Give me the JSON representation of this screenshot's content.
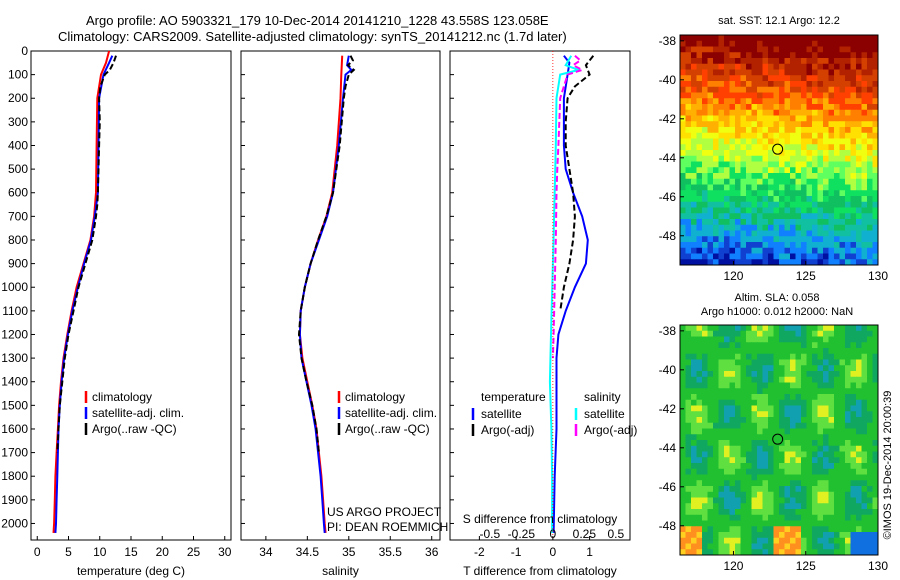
{
  "title_line1": "Argo profile: AO 5903321_179 10-Dec-2014 20141210_1228 43.558S 123.058E",
  "title_line2": "Climatology: CARS2009. Satellite-adjusted climatology: synTS_20141212.nc (1.7d later)",
  "side_caption": "©IMOS 19-Dec-2014 20:00:39",
  "colors": {
    "climatology": "#ff0000",
    "satellite": "#0000ff",
    "argo": "#000000",
    "sat_salinity": "#00ffff",
    "argo_salinity": "#ff00ff"
  },
  "chart_data": [
    {
      "id": "temperature",
      "type": "line",
      "xlabel": "temperature (deg C)",
      "ylabel": "",
      "xlim": [
        -1,
        31
      ],
      "ylim": [
        2070,
        0
      ],
      "xticks": [
        0,
        5,
        10,
        15,
        20,
        25,
        30
      ],
      "yticks": [
        0,
        100,
        200,
        300,
        400,
        500,
        600,
        700,
        800,
        900,
        1000,
        1100,
        1200,
        1300,
        1400,
        1500,
        1600,
        1700,
        1800,
        1900,
        2000
      ],
      "legend": [
        "climatology",
        "satellite-adj. clim.",
        "Argo(..raw -QC)"
      ],
      "legend_position": "lower-center",
      "series": [
        {
          "name": "climatology",
          "color": "#ff0000",
          "dash": "",
          "points": [
            [
              11.5,
              0
            ],
            [
              11.0,
              50
            ],
            [
              10.2,
              100
            ],
            [
              9.6,
              200
            ],
            [
              9.5,
              400
            ],
            [
              9.4,
              600
            ],
            [
              9.1,
              700
            ],
            [
              8.5,
              800
            ],
            [
              7.4,
              900
            ],
            [
              6.3,
              1000
            ],
            [
              5.5,
              1100
            ],
            [
              4.8,
              1200
            ],
            [
              4.2,
              1300
            ],
            [
              3.8,
              1400
            ],
            [
              3.5,
              1500
            ],
            [
              3.3,
              1600
            ],
            [
              3.1,
              1700
            ],
            [
              2.9,
              1800
            ],
            [
              2.8,
              1900
            ],
            [
              2.7,
              2000
            ],
            [
              2.6,
              2040
            ]
          ]
        },
        {
          "name": "satellite-adj. clim.",
          "color": "#0000ff",
          "dash": "",
          "points": [
            [
              12.0,
              20
            ],
            [
              11.5,
              50
            ],
            [
              10.6,
              100
            ],
            [
              9.9,
              200
            ],
            [
              9.8,
              400
            ],
            [
              9.7,
              600
            ],
            [
              9.2,
              700
            ],
            [
              8.6,
              800
            ],
            [
              7.5,
              900
            ],
            [
              6.5,
              1000
            ],
            [
              5.6,
              1100
            ],
            [
              4.9,
              1200
            ],
            [
              4.3,
              1300
            ],
            [
              3.9,
              1400
            ],
            [
              3.6,
              1500
            ],
            [
              3.4,
              1600
            ],
            [
              3.3,
              1700
            ],
            [
              3.2,
              1800
            ],
            [
              3.1,
              1900
            ],
            [
              3.0,
              2000
            ],
            [
              2.9,
              2040
            ]
          ]
        },
        {
          "name": "Argo(..raw -QC)",
          "color": "#000000",
          "dash": "6,3",
          "points": [
            [
              12.6,
              20
            ],
            [
              12.2,
              50
            ],
            [
              11.6,
              80
            ],
            [
              10.8,
              100
            ],
            [
              10.1,
              150
            ],
            [
              9.9,
              200
            ],
            [
              10.0,
              300
            ],
            [
              9.9,
              400
            ],
            [
              9.7,
              600
            ],
            [
              9.6,
              650
            ],
            [
              9.4,
              700
            ],
            [
              8.8,
              800
            ],
            [
              7.7,
              900
            ],
            [
              6.6,
              1000
            ],
            [
              5.8,
              1100
            ],
            [
              5.0,
              1200
            ],
            [
              4.4,
              1300
            ],
            [
              4.0,
              1400
            ],
            [
              3.6,
              1500
            ],
            [
              3.4,
              1600
            ],
            [
              3.2,
              1700
            ]
          ]
        }
      ]
    },
    {
      "id": "salinity",
      "type": "line",
      "xlabel": "salinity",
      "ylabel": "",
      "xlim": [
        33.7,
        36.1
      ],
      "ylim": [
        2070,
        0
      ],
      "xticks": [
        34,
        34.5,
        35,
        35.5,
        36
      ],
      "xticklabels": [
        "34",
        "34.5",
        "35",
        "35.5",
        "36"
      ],
      "legend": [
        "climatology",
        "satellite-adj. clim.",
        "Argo(..raw -QC)"
      ],
      "legend_position": "lower-right",
      "annotation": [
        "US ARGO PROJECT",
        "PI: DEAN ROEMMICH"
      ],
      "series": [
        {
          "name": "climatology",
          "color": "#ff0000",
          "dash": "",
          "points": [
            [
              34.92,
              20
            ],
            [
              34.91,
              100
            ],
            [
              34.9,
              200
            ],
            [
              34.86,
              400
            ],
            [
              34.8,
              600
            ],
            [
              34.73,
              700
            ],
            [
              34.63,
              800
            ],
            [
              34.54,
              900
            ],
            [
              34.47,
              1000
            ],
            [
              34.42,
              1100
            ],
            [
              34.41,
              1200
            ],
            [
              34.44,
              1300
            ],
            [
              34.5,
              1400
            ],
            [
              34.56,
              1500
            ],
            [
              34.61,
              1600
            ],
            [
              34.64,
              1700
            ],
            [
              34.67,
              1800
            ],
            [
              34.69,
              1900
            ],
            [
              34.71,
              2000
            ],
            [
              34.72,
              2040
            ]
          ]
        },
        {
          "name": "satellite-adj. clim.",
          "color": "#0000ff",
          "dash": "",
          "points": [
            [
              35.0,
              20
            ],
            [
              34.98,
              60
            ],
            [
              35.03,
              80
            ],
            [
              34.96,
              100
            ],
            [
              34.93,
              200
            ],
            [
              34.88,
              400
            ],
            [
              34.81,
              600
            ],
            [
              34.74,
              700
            ],
            [
              34.64,
              800
            ],
            [
              34.54,
              900
            ],
            [
              34.47,
              1000
            ],
            [
              34.42,
              1100
            ],
            [
              34.41,
              1200
            ],
            [
              34.43,
              1300
            ],
            [
              34.49,
              1400
            ],
            [
              34.55,
              1500
            ],
            [
              34.6,
              1600
            ],
            [
              34.63,
              1700
            ],
            [
              34.66,
              1800
            ],
            [
              34.68,
              1900
            ],
            [
              34.7,
              2000
            ],
            [
              34.71,
              2040
            ]
          ]
        },
        {
          "name": "Argo(..raw -QC)",
          "color": "#000000",
          "dash": "6,3",
          "points": [
            [
              35.02,
              20
            ],
            [
              35.05,
              40
            ],
            [
              34.99,
              60
            ],
            [
              35.06,
              80
            ],
            [
              35.0,
              100
            ],
            [
              34.96,
              150
            ],
            [
              34.94,
              200
            ],
            [
              34.89,
              400
            ],
            [
              34.81,
              600
            ],
            [
              34.73,
              700
            ],
            [
              34.63,
              800
            ],
            [
              34.54,
              900
            ],
            [
              34.47,
              1000
            ],
            [
              34.42,
              1100
            ],
            [
              34.4,
              1200
            ],
            [
              34.43,
              1300
            ],
            [
              34.49,
              1400
            ],
            [
              34.56,
              1500
            ],
            [
              34.61,
              1600
            ],
            [
              34.64,
              1700
            ]
          ]
        }
      ]
    },
    {
      "id": "difference",
      "type": "line",
      "xlabel": "T difference from climatology",
      "xlabel_top": "S difference from climatology",
      "ylabel": "",
      "xlim": [
        -2.8,
        2.1
      ],
      "ylim": [
        2070,
        0
      ],
      "xticks": [
        -2,
        -1,
        0,
        1
      ],
      "xticklabels": [
        "-2",
        "-1",
        "0",
        "1"
      ],
      "top_ticks": [
        -0.5,
        -0.25,
        0,
        0.25,
        0.5
      ],
      "top_ticklabels": [
        "-0.5",
        "-0.25",
        "0",
        "0.25",
        "0.5"
      ],
      "legend_groups": [
        {
          "title": "temperature",
          "items": [
            "satellite",
            "Argo(-adj)"
          ]
        },
        {
          "title": "salinity",
          "items": [
            "satellite",
            "Argo(-adj)"
          ]
        }
      ],
      "legend_position": "lower-center",
      "series": [
        {
          "name": "temperature satellite",
          "color": "#0000ff",
          "dash": "",
          "points": [
            [
              0.3,
              20
            ],
            [
              0.45,
              50
            ],
            [
              0.4,
              100
            ],
            [
              0.3,
              200
            ],
            [
              0.3,
              400
            ],
            [
              0.35,
              500
            ],
            [
              0.55,
              600
            ],
            [
              0.8,
              700
            ],
            [
              0.95,
              800
            ],
            [
              0.9,
              900
            ],
            [
              0.6,
              1000
            ],
            [
              0.35,
              1100
            ],
            [
              0.15,
              1200
            ],
            [
              0.1,
              1300
            ],
            [
              0.1,
              1400
            ],
            [
              0.1,
              1600
            ],
            [
              0.05,
              1800
            ],
            [
              0.02,
              2040
            ]
          ]
        },
        {
          "name": "temperature Argo(-adj)",
          "color": "#000000",
          "dash": "6,3",
          "points": [
            [
              1.1,
              20
            ],
            [
              0.9,
              60
            ],
            [
              1.0,
              100
            ],
            [
              0.6,
              150
            ],
            [
              0.4,
              200
            ],
            [
              0.35,
              300
            ],
            [
              0.35,
              400
            ],
            [
              0.45,
              500
            ],
            [
              0.55,
              600
            ],
            [
              0.6,
              700
            ],
            [
              0.55,
              800
            ],
            [
              0.45,
              900
            ],
            [
              0.3,
              1000
            ],
            [
              0.2,
              1100
            ]
          ]
        },
        {
          "name": "salinity satellite",
          "color": "#00ffff",
          "dash": "",
          "points": [
            [
              0.5,
              20
            ],
            [
              0.35,
              60
            ],
            [
              0.7,
              80
            ],
            [
              0.2,
              100
            ],
            [
              0.1,
              200
            ],
            [
              0.08,
              400
            ],
            [
              0.05,
              600
            ],
            [
              0.0,
              900
            ],
            [
              -0.05,
              1200
            ],
            [
              -0.08,
              1400
            ],
            [
              -0.04,
              1600
            ],
            [
              -0.02,
              1800
            ],
            [
              -0.02,
              2040
            ]
          ]
        },
        {
          "name": "salinity Argo(-adj)",
          "color": "#ff00ff",
          "dash": "6,3",
          "points": [
            [
              0.6,
              20
            ],
            [
              0.75,
              40
            ],
            [
              0.55,
              60
            ],
            [
              0.8,
              80
            ],
            [
              0.4,
              100
            ],
            [
              0.3,
              150
            ],
            [
              0.2,
              200
            ],
            [
              0.15,
              400
            ],
            [
              0.12,
              500
            ],
            [
              0.1,
              600
            ],
            [
              0.08,
              800
            ],
            [
              0.05,
              1000
            ],
            [
              0.02,
              1200
            ],
            [
              0.0,
              1300
            ]
          ]
        }
      ]
    },
    {
      "id": "sst_map",
      "type": "heatmap",
      "title": "sat. SST: 12.1  Argo: 12.2",
      "x_ticklabels": [
        "120",
        "125",
        "130"
      ],
      "y_ticklabels": [
        "-38",
        "-40",
        "-42",
        "-44",
        "-46",
        "-48"
      ],
      "marker": {
        "lon": 123.058,
        "lat": -43.558
      }
    },
    {
      "id": "sla_map",
      "type": "heatmap",
      "title_line1": "Altim. SLA: 0.058",
      "title_line2": "Argo h1000: 0.012 h2000: NaN",
      "x_ticklabels": [
        "120",
        "125",
        "130"
      ],
      "y_ticklabels": [
        "-38",
        "-40",
        "-42",
        "-44",
        "-46",
        "-48"
      ],
      "marker": {
        "lon": 123.058,
        "lat": -43.558
      }
    }
  ]
}
